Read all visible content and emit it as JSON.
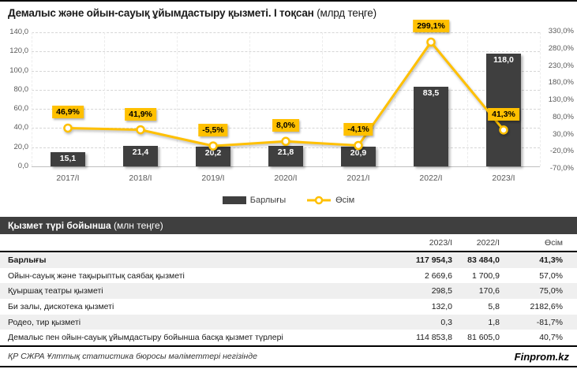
{
  "title": {
    "main": "Демалыс және ойын-сауық ұйымдастыру қызметі. I тоқсан",
    "unit": "(млрд теңге)"
  },
  "colors": {
    "accent_yellow": "#FFC000",
    "bar_dark": "#3F3F3F",
    "axis_text": "#595959",
    "row_alt": "#EFEFEF"
  },
  "chart_data": {
    "type": "bar+line combo",
    "categories": [
      "2017/I",
      "2018/I",
      "2019/I",
      "2020/I",
      "2021/I",
      "2022/I",
      "2023/I"
    ],
    "series": [
      {
        "name": "Барлығы",
        "type": "bar",
        "axis": "left",
        "values": [
          15.1,
          21.4,
          20.2,
          21.8,
          20.9,
          83.5,
          118.0
        ],
        "labels": [
          "15,1",
          "21,4",
          "20,2",
          "21,8",
          "20,9",
          "83,5",
          "118,0"
        ]
      },
      {
        "name": "Өсім",
        "type": "line",
        "axis": "right",
        "values": [
          46.9,
          41.9,
          -5.5,
          8.0,
          -4.1,
          299.1,
          41.3
        ],
        "labels": [
          "46,9%",
          "41,9%",
          "-5,5%",
          "8,0%",
          "-4,1%",
          "299,1%",
          "41,3%"
        ]
      }
    ],
    "left_axis": {
      "min": 0,
      "max": 140,
      "step": 20,
      "ticks": [
        "140,0",
        "120,0",
        "100,0",
        "80,0",
        "60,0",
        "40,0",
        "20,0",
        "0,0"
      ]
    },
    "right_axis": {
      "min": -70,
      "max": 330,
      "step": 50,
      "ticks": [
        "330,0%",
        "280,0%",
        "230,0%",
        "180,0%",
        "130,0%",
        "80,0%",
        "30,0%",
        "-20,0%",
        "-70,0%"
      ]
    },
    "legend": {
      "bars": "Барлығы",
      "line": "Өсім"
    },
    "grid": "horizontal dashed + faint vertical dashed",
    "legend_position": "bottom-center"
  },
  "table": {
    "section_title": "Қызмет түрі бойынша",
    "section_unit": "(млн теңге)",
    "columns": [
      "2023/I",
      "2022/I",
      "Өсім"
    ],
    "rows": [
      {
        "label": "Барлығы",
        "v2023": "117 954,3",
        "v2022": "83 484,0",
        "growth": "41,3%",
        "bold": true
      },
      {
        "label": "Ойын-сауық және тақырыптық саябақ қызметі",
        "v2023": "2 669,6",
        "v2022": "1 700,9",
        "growth": "57,0%",
        "bold": false
      },
      {
        "label": "Қуыршақ театры қызметі",
        "v2023": "298,5",
        "v2022": "170,6",
        "growth": "75,0%",
        "bold": false
      },
      {
        "label": "Би залы, дискотека қызметі",
        "v2023": "132,0",
        "v2022": "5,8",
        "growth": "2182,6%",
        "bold": false
      },
      {
        "label": "Родео, тир қызметі",
        "v2023": "0,3",
        "v2022": "1,8",
        "growth": "-81,7%",
        "bold": false
      },
      {
        "label": "Демалыс пен ойын-сауық ұйымдастыру бойынша басқа қызмет түрлері",
        "v2023": "114 853,8",
        "v2022": "81 605,0",
        "growth": "40,7%",
        "bold": false
      }
    ]
  },
  "footer": {
    "source": "ҚР СЖРА Ұлттық статистика бюросы мәліметтері негізінде",
    "brand": "Finprom.kz"
  }
}
